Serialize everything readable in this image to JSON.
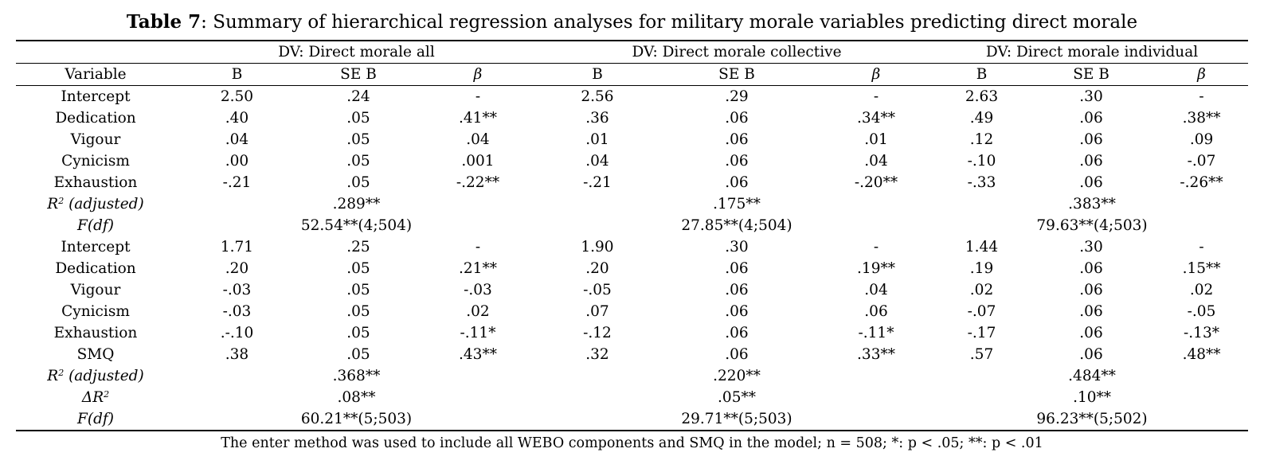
{
  "title": {
    "bold": "Table 7",
    "rest": ": Summary of hierarchical regression analyses for military morale variables predicting direct morale"
  },
  "dv_headers": [
    "DV: Direct morale all",
    "DV: Direct morale collective",
    "DV: Direct morale individual"
  ],
  "col_headers": {
    "variable": "Variable",
    "b": "B",
    "seb": "SE B",
    "beta": "β"
  },
  "rows": [
    {
      "type": "coef",
      "label": "Intercept",
      "italic": false,
      "cells": [
        "2.50",
        ".24",
        "-",
        "2.56",
        ".29",
        "-",
        "2.63",
        ".30",
        "-"
      ]
    },
    {
      "type": "coef",
      "label": "Dedication",
      "italic": false,
      "cells": [
        ".40",
        ".05",
        ".41**",
        ".36",
        ".06",
        ".34**",
        ".49",
        ".06",
        ".38**"
      ]
    },
    {
      "type": "coef",
      "label": "Vigour",
      "italic": false,
      "cells": [
        ".04",
        ".05",
        ".04",
        ".01",
        ".06",
        ".01",
        ".12",
        ".06",
        ".09"
      ]
    },
    {
      "type": "coef",
      "label": "Cynicism",
      "italic": false,
      "cells": [
        ".00",
        ".05",
        ".001",
        ".04",
        ".06",
        ".04",
        "-.10",
        ".06",
        "-.07"
      ]
    },
    {
      "type": "coef",
      "label": "Exhaustion",
      "italic": false,
      "cells": [
        "-.21",
        ".05",
        "-.22**",
        "-.21",
        ".06",
        "-.20**",
        "-.33",
        ".06",
        "-.26**"
      ]
    },
    {
      "type": "summary",
      "label": "R",
      "sup": "2",
      "label_after": " (adjusted)",
      "italic": true,
      "cells": [
        ".289**",
        ".175**",
        ".383**"
      ]
    },
    {
      "type": "summary",
      "label": "F(df)",
      "sup": "",
      "label_after": "",
      "italic": true,
      "cells": [
        "52.54**(4;504)",
        "27.85**(4;504)",
        "79.63**(4;503)"
      ]
    },
    {
      "type": "coef",
      "label": "Intercept",
      "italic": false,
      "cells": [
        "1.71",
        ".25",
        "-",
        "1.90",
        ".30",
        "-",
        "1.44",
        ".30",
        "-"
      ]
    },
    {
      "type": "coef",
      "label": "Dedication",
      "italic": false,
      "cells": [
        ".20",
        ".05",
        ".21**",
        ".20",
        ".06",
        ".19**",
        ".19",
        ".06",
        ".15**"
      ]
    },
    {
      "type": "coef",
      "label": "Vigour",
      "italic": false,
      "cells": [
        "-.03",
        ".05",
        "-.03",
        "-.05",
        ".06",
        ".04",
        ".02",
        ".06",
        ".02"
      ]
    },
    {
      "type": "coef",
      "label": "Cynicism",
      "italic": false,
      "cells": [
        "-.03",
        ".05",
        ".02",
        ".07",
        ".06",
        ".06",
        "-.07",
        ".06",
        "-.05"
      ]
    },
    {
      "type": "coef",
      "label": "Exhaustion",
      "italic": false,
      "cells": [
        ".-.10",
        ".05",
        "-.11*",
        "-.12",
        ".06",
        "-.11*",
        "-.17",
        ".06",
        "-.13*"
      ]
    },
    {
      "type": "coef",
      "label": "SMQ",
      "italic": false,
      "cells": [
        ".38",
        ".05",
        ".43**",
        ".32",
        ".06",
        ".33**",
        ".57",
        ".06",
        ".48**"
      ]
    },
    {
      "type": "summary",
      "label": "R",
      "sup": "2",
      "label_after": " (adjusted)",
      "italic": true,
      "cells": [
        ".368**",
        ".220**",
        ".484**"
      ]
    },
    {
      "type": "summary",
      "label": "ΔR",
      "sup": "2",
      "label_after": "",
      "italic": true,
      "cells": [
        ".08**",
        ".05**",
        ".10**"
      ]
    },
    {
      "type": "summary",
      "label": "F(df)",
      "sup": "",
      "label_after": "",
      "italic": true,
      "cells": [
        "60.21**(5;503)",
        "29.71**(5;503)",
        "96.23**(5;502)"
      ]
    }
  ],
  "footnote": "The enter method was used to include all WEBO components and SMQ in the model; n = 508; *: p < .05; **: p < .01"
}
